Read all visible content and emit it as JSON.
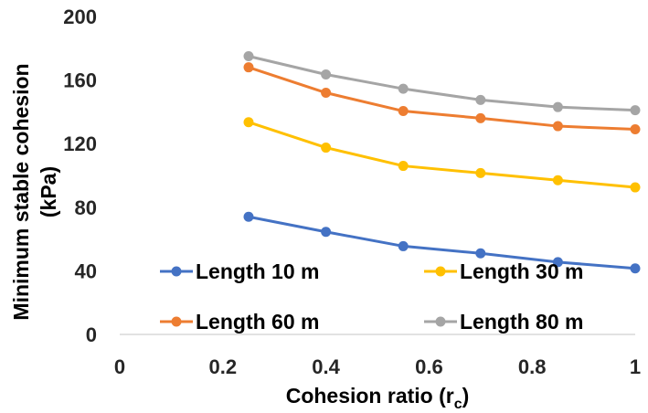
{
  "chart_data": {
    "type": "line",
    "xlabel": "Cohesion ratio (r",
    "xlabel_sub": "c",
    "xlabel_end": ")",
    "ylabel_line1": "Minimum stable cohesion",
    "ylabel_line2": "(kPa)",
    "xlim": [
      0,
      1
    ],
    "ylim": [
      0,
      200
    ],
    "xticks": [
      0,
      0.2,
      0.4,
      0.6,
      0.8,
      1
    ],
    "xtick_labels": [
      "0",
      "0.2",
      "0.4",
      "0.6",
      "0.8",
      "1"
    ],
    "yticks": [
      0,
      40,
      80,
      120,
      160,
      200
    ],
    "ytick_labels": [
      "0",
      "40",
      "80",
      "120",
      "160",
      "200"
    ],
    "grid": false,
    "legend_position": "bottom-inside",
    "x": [
      0.25,
      0.4,
      0.55,
      0.7,
      0.85,
      1.0
    ],
    "series": [
      {
        "name": "Length 10 m",
        "color": "#4472C4",
        "values": [
          74,
          64.5,
          55.5,
          51,
          45.5,
          41.5
        ]
      },
      {
        "name": "Length 30 m",
        "color": "#FFC000",
        "values": [
          133.5,
          117.5,
          106,
          101.5,
          97,
          92.5
        ]
      },
      {
        "name": "Length 60 m",
        "color": "#ED7D31",
        "values": [
          168,
          152,
          140.5,
          136,
          131,
          129
        ]
      },
      {
        "name": "Length 80 m",
        "color": "#A5A5A5",
        "values": [
          175,
          163.5,
          154.5,
          147.5,
          143,
          141
        ]
      }
    ]
  }
}
